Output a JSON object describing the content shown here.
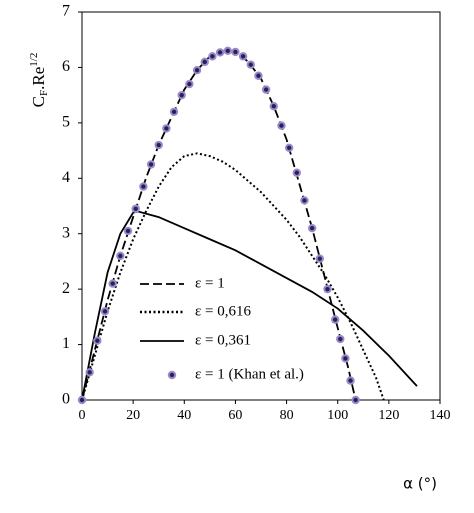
{
  "chart_data": {
    "type": "line",
    "y_label": [
      "C",
      "F",
      ".Re",
      "1/2"
    ],
    "x_label": "α (°)",
    "xlim": [
      0,
      140
    ],
    "xticks": [
      0,
      20,
      40,
      60,
      80,
      100,
      120,
      140
    ],
    "ylim": [
      0,
      7
    ],
    "yticks": [
      0,
      1,
      2,
      3,
      4,
      5,
      6,
      7
    ],
    "series": [
      {
        "name": "ε = 1",
        "color": "#000000",
        "line": "dashed",
        "x": [
          0,
          5,
          10,
          15,
          20,
          25,
          30,
          35,
          40,
          45,
          50,
          55,
          60,
          65,
          70,
          75,
          80,
          85,
          90,
          95,
          100,
          104,
          107
        ],
        "values": [
          0,
          0.9,
          1.8,
          2.6,
          3.3,
          4.0,
          4.6,
          5.1,
          5.6,
          5.95,
          6.2,
          6.3,
          6.3,
          6.1,
          5.8,
          5.3,
          4.7,
          3.9,
          3.1,
          2.2,
          1.3,
          0.6,
          0
        ]
      },
      {
        "name": "ε = 0,616",
        "color": "#000000",
        "line": "dotted",
        "x": [
          0,
          5,
          10,
          15,
          20,
          25,
          30,
          35,
          40,
          45,
          50,
          55,
          60,
          65,
          70,
          75,
          80,
          85,
          90,
          95,
          100,
          105,
          110,
          115,
          118
        ],
        "values": [
          0,
          0.8,
          1.6,
          2.3,
          2.9,
          3.4,
          3.85,
          4.2,
          4.4,
          4.45,
          4.4,
          4.3,
          4.15,
          3.95,
          3.75,
          3.5,
          3.25,
          2.95,
          2.6,
          2.25,
          1.85,
          1.4,
          0.9,
          0.4,
          0
        ]
      },
      {
        "name": "ε = 0,361",
        "color": "#000000",
        "line": "solid",
        "x": [
          0,
          5,
          10,
          15,
          20,
          22,
          30,
          40,
          50,
          60,
          70,
          80,
          90,
          100,
          110,
          120,
          131
        ],
        "values": [
          0,
          1.2,
          2.3,
          3.0,
          3.38,
          3.4,
          3.3,
          3.1,
          2.9,
          2.7,
          2.45,
          2.2,
          1.95,
          1.65,
          1.25,
          0.8,
          0.25
        ]
      },
      {
        "name": "ε = 1 (Khan et al.)",
        "color": "#2b1f5a",
        "line": "none",
        "marker": "circle",
        "x": [
          0,
          3,
          6,
          9,
          12,
          15,
          18,
          21,
          24,
          27,
          30,
          33,
          36,
          39,
          42,
          45,
          48,
          51,
          54,
          57,
          60,
          63,
          66,
          69,
          72,
          75,
          78,
          81,
          84,
          87,
          90,
          93,
          96,
          99,
          101,
          103,
          105,
          107
        ],
        "values": [
          0,
          0.5,
          1.07,
          1.6,
          2.1,
          2.6,
          3.05,
          3.45,
          3.85,
          4.25,
          4.6,
          4.9,
          5.2,
          5.5,
          5.7,
          5.95,
          6.1,
          6.2,
          6.27,
          6.3,
          6.28,
          6.2,
          6.05,
          5.85,
          5.6,
          5.3,
          4.95,
          4.55,
          4.1,
          3.6,
          3.1,
          2.55,
          2.0,
          1.45,
          1.1,
          0.75,
          0.35,
          0
        ]
      }
    ]
  }
}
